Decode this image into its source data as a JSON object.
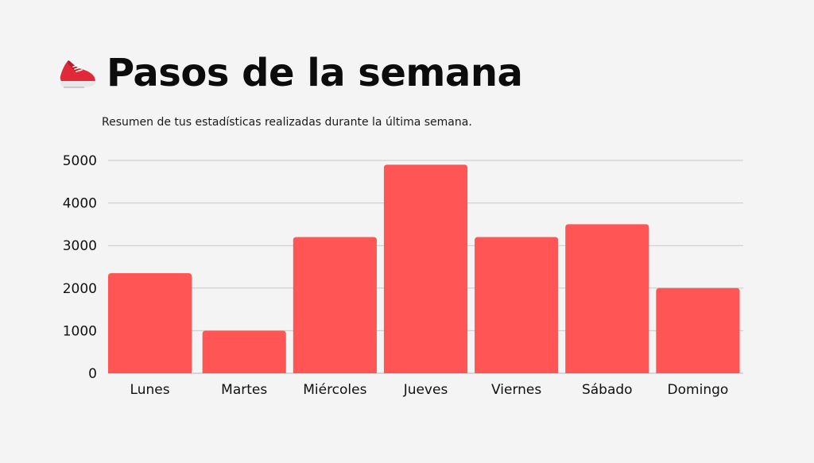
{
  "header": {
    "title": "Pasos de la semana",
    "subtitle": "Resumen de tus estadísticas realizadas durante la última semana.",
    "icon": "running-shoe-icon"
  },
  "chart_data": {
    "type": "bar",
    "title": "Pasos de la semana",
    "subtitle": "Resumen de tus estadísticas realizadas durante la última semana.",
    "categories": [
      "Lunes",
      "Martes",
      "Miércoles",
      "Jueves",
      "Viernes",
      "Sábado",
      "Domingo"
    ],
    "values": [
      2350,
      1000,
      3200,
      4900,
      3200,
      3500,
      2000
    ],
    "ylim": [
      0,
      5000
    ],
    "yticks": [
      0,
      1000,
      2000,
      3000,
      4000,
      5000
    ],
    "xlabel": "",
    "ylabel": "",
    "grid": true,
    "legend": "none",
    "bar_color": "#ff5555",
    "grid_color": "#c8c8c8"
  }
}
